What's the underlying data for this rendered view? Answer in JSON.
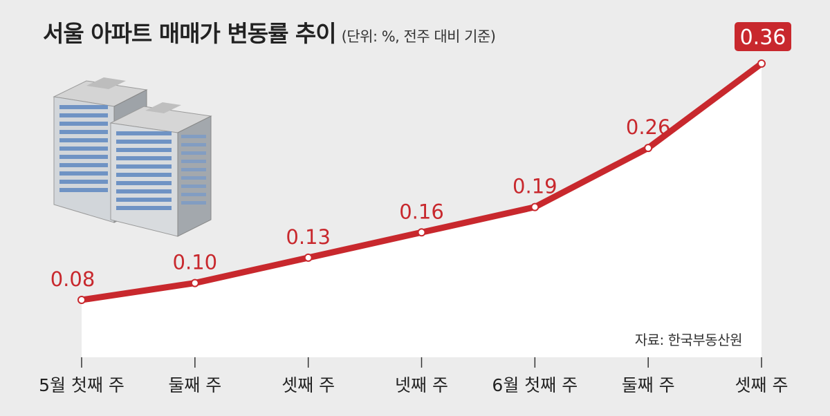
{
  "chart_data": {
    "type": "area",
    "title": "서울 아파트 매매가 변동률 추이",
    "subtitle": "(단위: %, 전주 대비 기준)",
    "source": "자료: 한국부동산원",
    "categories": [
      "5월 첫째 주",
      "둘째 주",
      "셋째 주",
      "넷째 주",
      "6월 첫째 주",
      "둘째 주",
      "셋째 주"
    ],
    "values": [
      0.08,
      0.1,
      0.13,
      0.16,
      0.19,
      0.26,
      0.36
    ],
    "value_labels": [
      "0.08",
      "0.10",
      "0.13",
      "0.16",
      "0.19",
      "0.26",
      "0.36"
    ],
    "highlight_last": true,
    "line_color": "#c8282d",
    "fill_color": "#ffffff",
    "ylim": [
      0,
      0.4
    ],
    "grid": false,
    "legend": "none"
  }
}
